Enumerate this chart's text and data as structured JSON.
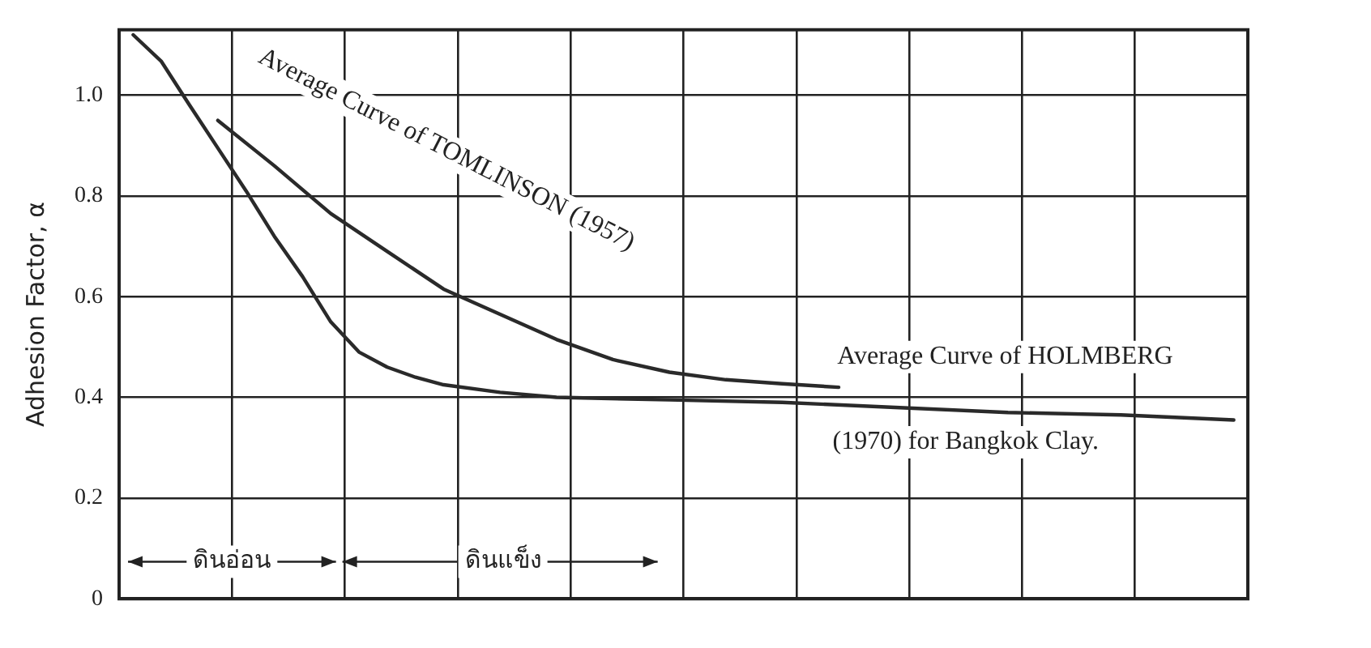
{
  "chart_data": {
    "type": "line",
    "ylabel": "Adhesion Factor, α",
    "categories": [
      null,
      null,
      null,
      null,
      null,
      null,
      null,
      null,
      null,
      null,
      null,
      null,
      null,
      null,
      null,
      null,
      null,
      null,
      null,
      null,
      null,
      null,
      null,
      null,
      null,
      null,
      null,
      null,
      null,
      null,
      null,
      null,
      null,
      null,
      null,
      null,
      null,
      null,
      null,
      null
    ],
    "ylim": [
      0,
      1.13
    ],
    "yticks": [
      0,
      0.2,
      0.4,
      0.6,
      0.8,
      {
        "value": 1,
        "label": "1.0"
      }
    ],
    "grid": true,
    "legend": false,
    "marker": "none",
    "series": [
      {
        "color": "#2a2a2a",
        "values": [
          1.12,
          1.067,
          0.98,
          0.895,
          0.81,
          0.72,
          0.64,
          0.55,
          0.49,
          0.46,
          0.44,
          0.425,
          null,
          0.41,
          null,
          0.4,
          null,
          null,
          null,
          0.395,
          null,
          null,
          null,
          0.39,
          null,
          null,
          null,
          0.38,
          null,
          null,
          null,
          0.37,
          null,
          null,
          null,
          0.365,
          null,
          null,
          null,
          0.355
        ]
      },
      {
        "color": "#2a2a2a",
        "values": [
          null,
          null,
          null,
          0.95,
          null,
          0.86,
          null,
          0.765,
          null,
          0.69,
          null,
          0.615,
          null,
          0.565,
          null,
          0.515,
          null,
          0.475,
          null,
          0.45,
          null,
          0.435,
          null,
          0.427,
          null,
          0.42,
          null,
          null,
          null,
          null,
          null,
          null,
          null,
          null,
          null,
          null,
          null,
          null,
          null,
          null
        ]
      }
    ],
    "annotations": [
      "Average Curve of TOMLINSON (1957)",
      "Average Curve of HOLMBERG",
      "(1970) for Bangkok Clay.",
      "ดินอ่อน",
      "ดินแข็ง"
    ]
  }
}
